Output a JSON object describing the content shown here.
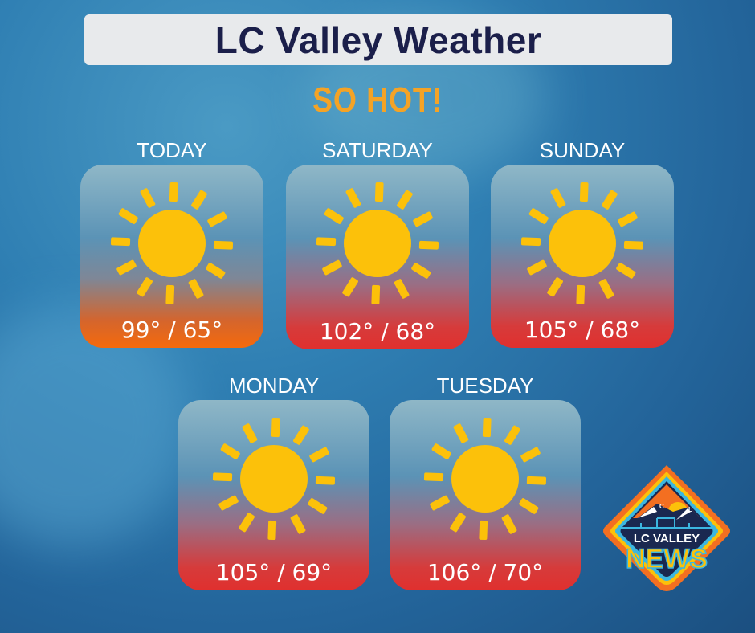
{
  "header": {
    "title": "LC Valley Weather",
    "subtitle": "SO HOT!"
  },
  "forecast": [
    {
      "day": "TODAY",
      "temps": "99° / 65°",
      "icon": "sun-icon",
      "style": "orange"
    },
    {
      "day": "SATURDAY",
      "temps": "102° / 68°",
      "icon": "sun-icon",
      "style": "red"
    },
    {
      "day": "SUNDAY",
      "temps": "105° / 68°",
      "icon": "sun-icon",
      "style": "red"
    },
    {
      "day": "MONDAY",
      "temps": "105° / 69°",
      "icon": "sun-icon",
      "style": "red"
    },
    {
      "day": "TUESDAY",
      "temps": "106° / 70°",
      "icon": "sun-icon",
      "style": "red"
    }
  ],
  "logo": {
    "line1": "LC VALLEY",
    "line2": "NEWS",
    "letters": "C L"
  },
  "colors": {
    "sun": "#fcc10a",
    "title": "#1b1f4a",
    "subtitle": "#f4a326"
  }
}
